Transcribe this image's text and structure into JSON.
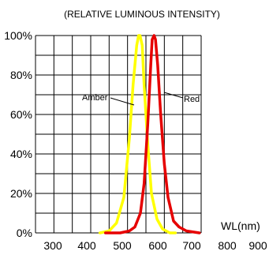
{
  "chart_data": {
    "type": "line",
    "title": "(RELATIVE LUMINOUS INTENSITY)",
    "xlabel": "WL(nm)",
    "ylabel": "",
    "xlim": [
      300,
      750
    ],
    "ylim": [
      0,
      100
    ],
    "x_ticks": [
      "300",
      "400",
      "500",
      "600",
      "700",
      "800",
      "900"
    ],
    "y_ticks": [
      "0%",
      "20%",
      "40%",
      "60%",
      "80%",
      "100%"
    ],
    "grid": true,
    "series": [
      {
        "name": "Amber",
        "color": "#ffff00",
        "x": [
          475,
          500,
          520,
          540,
          555,
          565,
          575,
          580,
          584,
          590,
          595,
          605,
          615,
          630,
          645,
          665,
          680
        ],
        "y": [
          0,
          1,
          5,
          18,
          48,
          75,
          95,
          100,
          100,
          95,
          75,
          45,
          20,
          7,
          2,
          0,
          0
        ]
      },
      {
        "name": "Red",
        "color": "#e60000",
        "x": [
          490,
          530,
          555,
          570,
          585,
          595,
          605,
          613,
          617,
          622,
          626,
          632,
          640,
          650,
          660,
          675,
          690,
          710,
          745
        ],
        "y": [
          0,
          0,
          1,
          3,
          10,
          25,
          55,
          85,
          98,
          100,
          98,
          85,
          60,
          35,
          18,
          6,
          3,
          1,
          0
        ]
      }
    ]
  }
}
